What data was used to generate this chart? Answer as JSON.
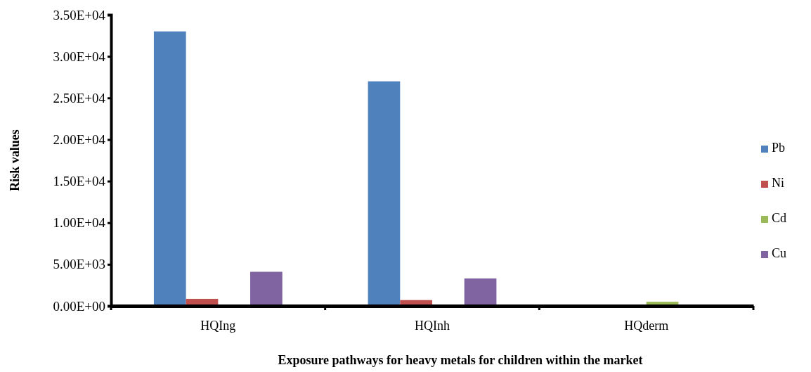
{
  "chart_data": {
    "type": "bar",
    "xlabel": "Exposure pathways for heavy metals for children within the market",
    "ylabel": "Risk values",
    "categories": [
      "HQIng",
      "HQInh",
      "HQderm"
    ],
    "series": [
      {
        "name": "Pb",
        "color": "#4f81bd",
        "values": [
          33000,
          27000,
          0
        ]
      },
      {
        "name": "Ni",
        "color": "#c0504d",
        "values": [
          850,
          700,
          0
        ]
      },
      {
        "name": "Cd",
        "color": "#9bbb59",
        "values": [
          0,
          0,
          500
        ]
      },
      {
        "name": "Cu",
        "color": "#8064a2",
        "values": [
          4100,
          3300,
          0
        ]
      }
    ],
    "ylim": [
      0,
      35000
    ],
    "yticks": [
      {
        "value": 0,
        "label": "0.00E+00"
      },
      {
        "value": 5000,
        "label": "5.00E+03"
      },
      {
        "value": 10000,
        "label": "1.00E+04"
      },
      {
        "value": 15000,
        "label": "1.50E+04"
      },
      {
        "value": 20000,
        "label": "2.00E+04"
      },
      {
        "value": 25000,
        "label": "2.50E+04"
      },
      {
        "value": 30000,
        "label": "3.00E+04"
      },
      {
        "value": 35000,
        "label": "3.50E+04"
      }
    ],
    "grid": false,
    "legend": "right"
  }
}
